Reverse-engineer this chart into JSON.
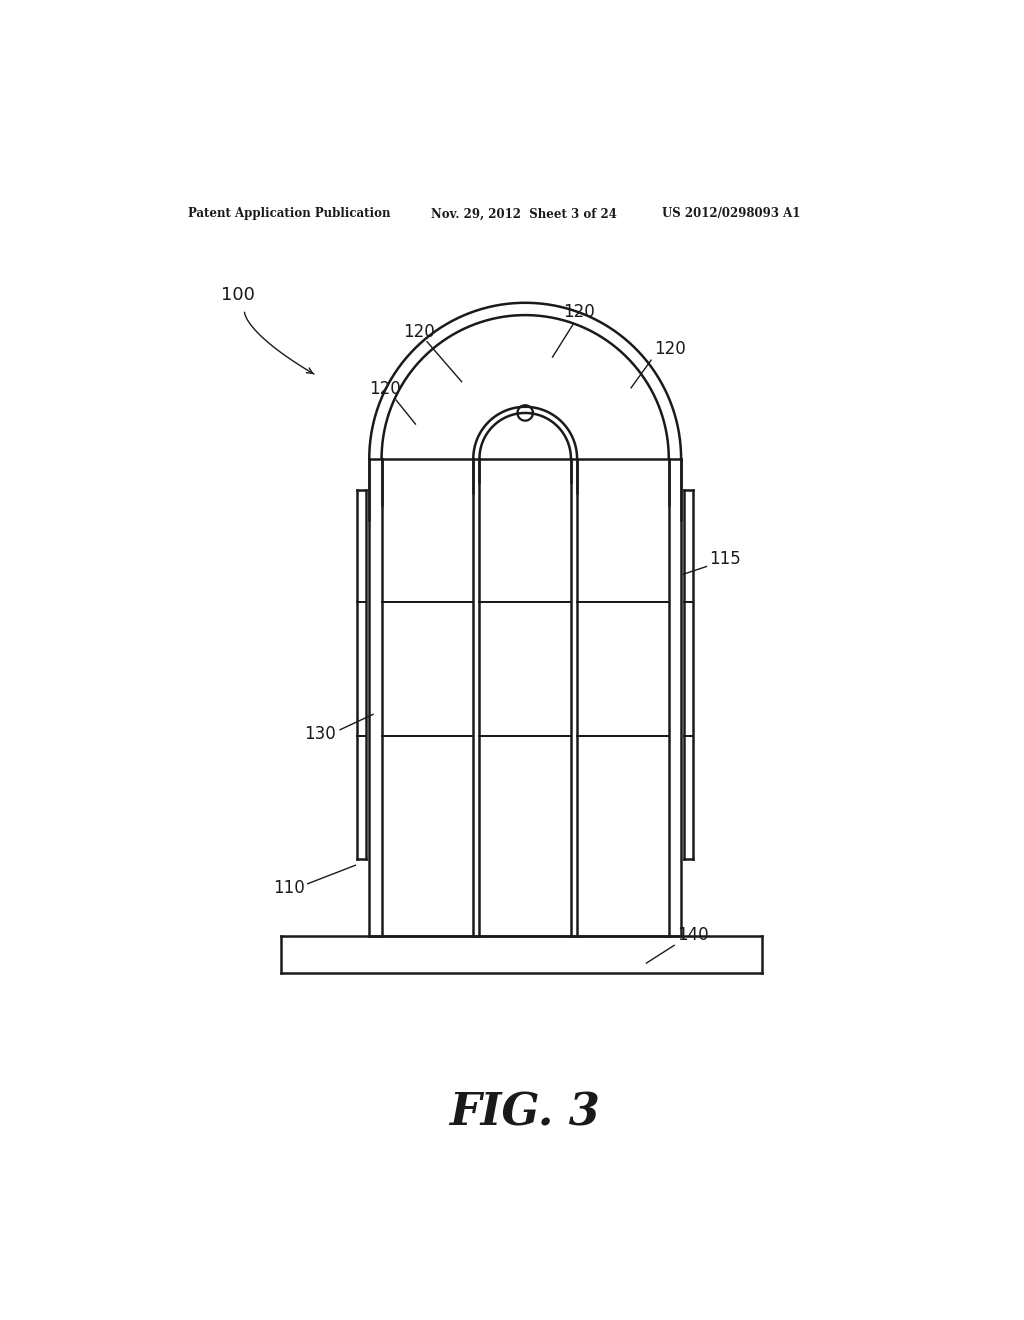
{
  "header_left": "Patent Application Publication",
  "header_mid": "Nov. 29, 2012  Sheet 3 of 24",
  "header_right": "US 2012/0298093 A1",
  "figure_label": "FIG. 3",
  "bg_color": "#ffffff",
  "line_color": "#1a1a1a",
  "label_100": "100",
  "label_110": "110",
  "label_115": "115",
  "label_120a": "120",
  "label_120b": "120",
  "label_120c": "120",
  "label_120d": "120",
  "label_130": "130",
  "label_140": "140",
  "lw": 1.8
}
